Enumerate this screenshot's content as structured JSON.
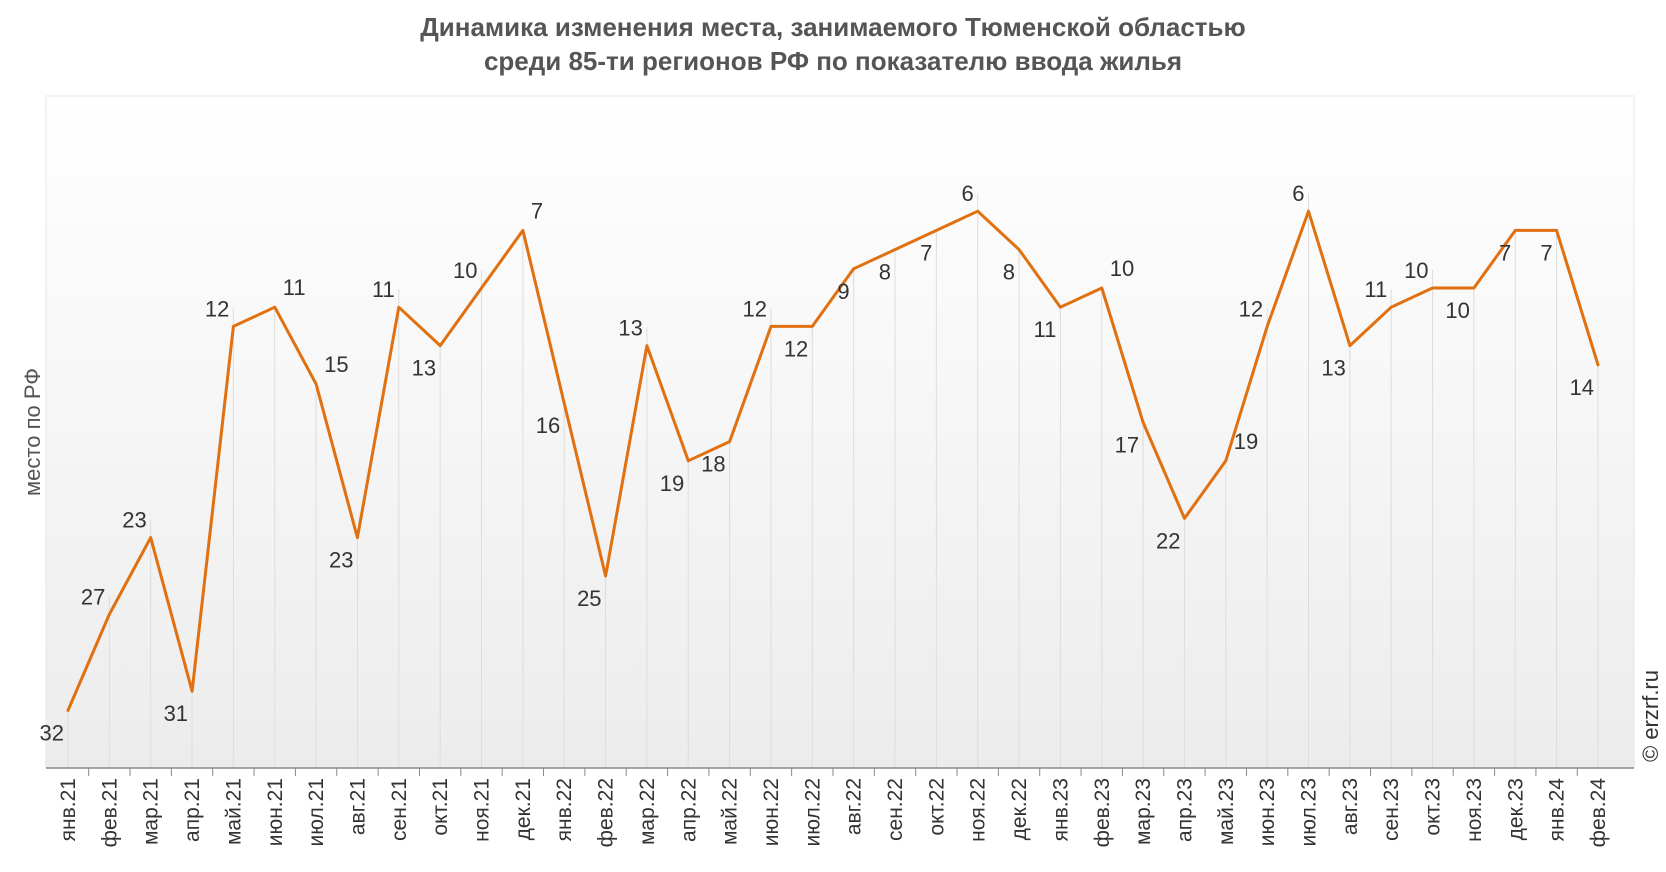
{
  "chart_data": {
    "type": "line",
    "title_line1": "Динамика изменения места, занимаемого Тюменской областью",
    "title_line2": "среди 85-ти регионов РФ по показателю ввода жилья",
    "ylabel": "место по РФ",
    "xlabel": "",
    "y_inverted": true,
    "ylim": [
      35,
      0
    ],
    "grid": "vertical drop lines",
    "legend": "none",
    "categories": [
      "янв.21",
      "фев.21",
      "мар.21",
      "апр.21",
      "май.21",
      "июн.21",
      "июл.21",
      "авг.21",
      "сен.21",
      "окт.21",
      "ноя.21",
      "дек.21",
      "янв.22",
      "фев.22",
      "мар.22",
      "апр.22",
      "май.22",
      "июн.22",
      "июл.22",
      "авг.22",
      "сен.22",
      "окт.22",
      "ноя.22",
      "дек.22",
      "янв.23",
      "фев.23",
      "мар.23",
      "апр.23",
      "май.23",
      "июн.23",
      "июл.23",
      "авг.23",
      "сен.23",
      "окт.23",
      "ноя.23",
      "дек.23",
      "янв.24",
      "фев.24"
    ],
    "series": [
      {
        "values": [
          32,
          27,
          23,
          31,
          12,
          11,
          15,
          23,
          11,
          13,
          10,
          7,
          16,
          25,
          13,
          19,
          18,
          12,
          12,
          9,
          8,
          7,
          6,
          8,
          11,
          10,
          17,
          22,
          19,
          12,
          6,
          13,
          11,
          10,
          10,
          7,
          7,
          14
        ],
        "color": "#E07010"
      }
    ],
    "label_positions": [
      "below",
      "above",
      "above",
      "below",
      "above",
      "right",
      "right",
      "below",
      "above",
      "below",
      "above",
      "right",
      "below",
      "below",
      "above",
      "below",
      "below",
      "above",
      "below",
      "below",
      "below",
      "below",
      "above",
      "below",
      "below",
      "right",
      "below",
      "below",
      "right",
      "above",
      "above",
      "below",
      "above",
      "above",
      "below",
      "below",
      "below",
      "below"
    ]
  },
  "credit": "© erzrf.ru",
  "colors": {
    "line": "#E07010",
    "plot_bg_top": "#ffffff",
    "plot_bg_bottom": "#ececec",
    "drop_line": "#dddddd",
    "axis": "#888888"
  }
}
